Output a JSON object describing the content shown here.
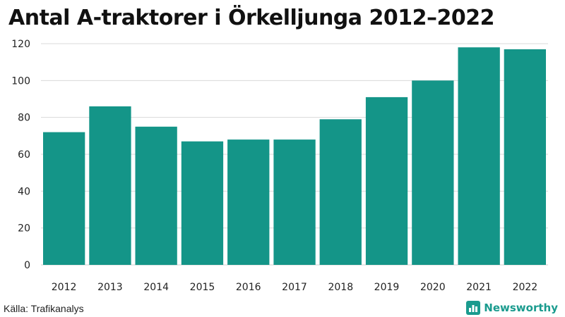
{
  "chart_data": {
    "type": "bar",
    "title": "Antal A-traktorer i Örkelljunga 2012–2022",
    "categories": [
      "2012",
      "2013",
      "2014",
      "2015",
      "2016",
      "2017",
      "2018",
      "2019",
      "2020",
      "2021",
      "2022"
    ],
    "values": [
      72,
      86,
      75,
      67,
      68,
      68,
      79,
      91,
      100,
      118,
      117
    ],
    "ylim": [
      0,
      120
    ],
    "yticks": [
      "0",
      "20",
      "40",
      "60",
      "80",
      "100",
      "120"
    ],
    "grid": true,
    "bar_color": "#149588",
    "grid_color": "#d9d9d9",
    "source": "Källa: Trafikanalys"
  },
  "brand": {
    "name": "Newsworthy",
    "color": "#1a9b8e",
    "icon": "newsworthy-logo-icon"
  }
}
